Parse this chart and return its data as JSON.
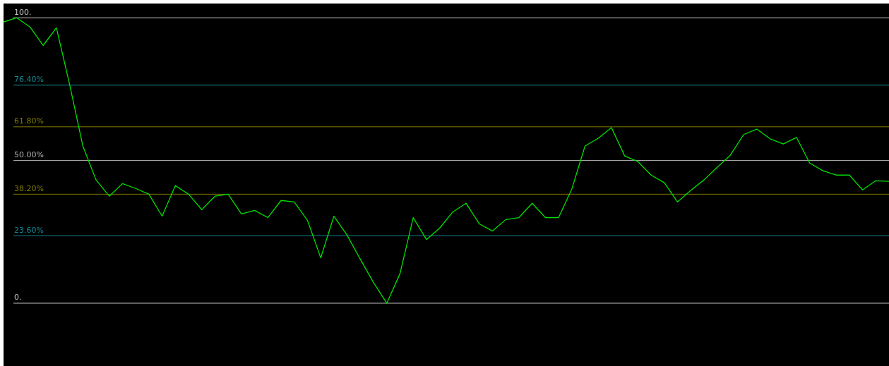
{
  "chart_data": {
    "type": "line",
    "categories": [
      null,
      null,
      null,
      null,
      null,
      null,
      null,
      null,
      null,
      null,
      null,
      null,
      null,
      null,
      null,
      null,
      null,
      null,
      null,
      null,
      null,
      null,
      null,
      null,
      null,
      null,
      null,
      null,
      null,
      null,
      null,
      null,
      null,
      null,
      null,
      null,
      null,
      null,
      null,
      null,
      null,
      null,
      null,
      null,
      null,
      null,
      null,
      null,
      null,
      null,
      null,
      null,
      null,
      null,
      null,
      null,
      null,
      null,
      null,
      null,
      null,
      null,
      null,
      null,
      null,
      null,
      null,
      null
    ],
    "series": [
      {
        "color": "#00e000",
        "values": [
          98.5,
          100,
          96.8,
          90.3,
          96.5,
          76.7,
          55.1,
          43.2,
          37.5,
          41.9,
          40.2,
          38.2,
          30.5,
          41.2,
          38.2,
          32.8,
          37.5,
          38.2,
          31.3,
          32.5,
          30.0,
          36.0,
          35.5,
          29.0,
          15.9,
          30.5,
          23.8,
          15.4,
          7.2,
          0,
          10.4,
          30.0,
          22.3,
          26.3,
          32.0,
          35.0,
          27.8,
          25.3,
          29.3,
          30.0,
          35.0,
          30.0,
          30.0,
          40.0,
          55.1,
          57.8,
          61.5,
          51.6,
          49.6,
          44.9,
          42.2,
          35.5,
          39.5,
          43.2,
          47.6,
          51.9,
          59.1,
          61.0,
          57.6,
          55.8,
          58.1,
          49.1,
          46.4,
          44.9,
          44.9,
          39.7,
          42.9,
          42.7
        ]
      }
    ],
    "ylim": [
      -22,
      105
    ],
    "tick_labels": false,
    "marker": "none",
    "line_style": "solid",
    "ref_lines": [
      {
        "axis": "y",
        "value": 100,
        "label": "100.",
        "color": "#c8c8c8"
      },
      {
        "axis": "y",
        "value": 76.4,
        "label": "76.40%",
        "color": "#138a94"
      },
      {
        "axis": "y",
        "value": 61.8,
        "label": "61.80%",
        "color": "#807c00"
      },
      {
        "axis": "y",
        "value": 50,
        "label": "50.00%",
        "color": "#b4b4b4"
      },
      {
        "axis": "y",
        "value": 38.2,
        "label": "38.20%",
        "color": "#807c00"
      },
      {
        "axis": "y",
        "value": 23.6,
        "label": "23.60%",
        "color": "#138a94"
      },
      {
        "axis": "y",
        "value": 0,
        "label": "0.",
        "color": "#c8c8c8"
      }
    ]
  }
}
